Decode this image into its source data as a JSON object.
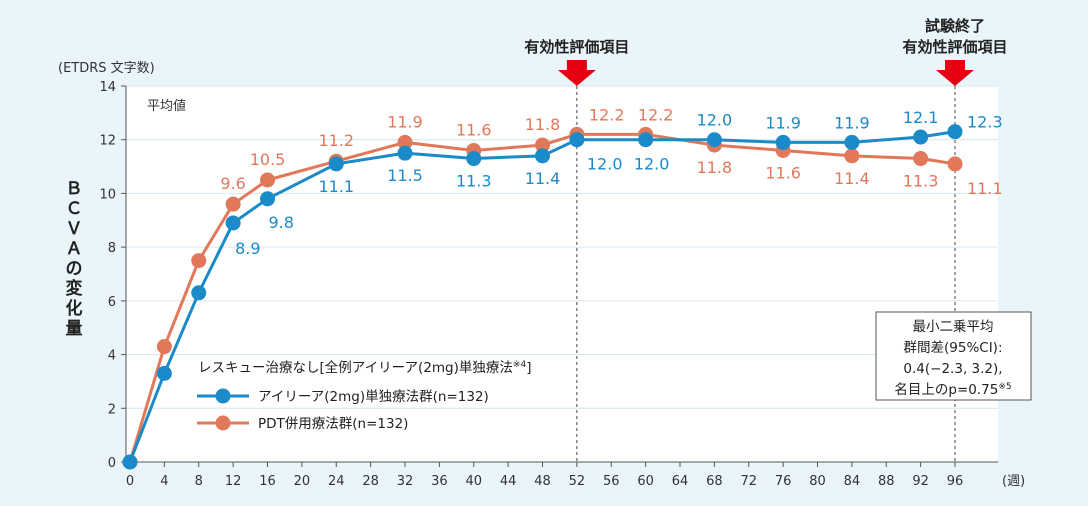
{
  "chart_data": {
    "type": "line",
    "unit_label": "(ETDRS 文字数)",
    "ylabel": "ＢＣＶＡの変化量",
    "x_unit": "(週)",
    "subtitle": "平均値",
    "ylim": [
      0,
      14
    ],
    "xlim": [
      0,
      96
    ],
    "y_ticks": [
      0,
      2,
      4,
      6,
      8,
      10,
      12,
      14
    ],
    "x_ticks": [
      0,
      4,
      8,
      12,
      16,
      20,
      24,
      28,
      32,
      36,
      40,
      44,
      48,
      52,
      56,
      60,
      64,
      68,
      72,
      76,
      80,
      84,
      88,
      92,
      96
    ],
    "x": [
      0,
      4,
      8,
      12,
      16,
      24,
      32,
      40,
      48,
      52,
      60,
      68,
      76,
      84,
      92,
      96
    ],
    "series": [
      {
        "name": "アイリーア(2mg)単独療法群(n=132)",
        "color": "#1a8ac8",
        "values": [
          0,
          3.3,
          6.3,
          8.9,
          9.8,
          11.1,
          11.5,
          11.3,
          11.4,
          12.0,
          12.0,
          12.0,
          11.9,
          11.9,
          12.1,
          12.3
        ],
        "labels": [
          "",
          "",
          "",
          "8.9",
          "9.8",
          "11.1",
          "11.5",
          "11.3",
          "11.4",
          "12.0",
          "12.0",
          "12.0",
          "11.9",
          "11.9",
          "12.1",
          "12.3"
        ]
      },
      {
        "name": "PDT併用療法群(n=132)",
        "color": "#e2785a",
        "values": [
          0,
          4.3,
          7.5,
          9.6,
          10.5,
          11.2,
          11.9,
          11.6,
          11.8,
          12.2,
          12.2,
          11.8,
          11.6,
          11.4,
          11.3,
          11.1
        ],
        "labels": [
          "",
          "",
          "",
          "9.6",
          "10.5",
          "11.2",
          "11.9",
          "11.6",
          "11.8",
          "12.2",
          "12.2",
          "11.8",
          "11.6",
          "11.4",
          "11.3",
          "11.1"
        ]
      }
    ],
    "legend_title": "レスキュー治療なし[全例アイリーア(2mg)単独療法",
    "legend_title_sup": "※4",
    "legend_title_end": "]",
    "legend_position": "lower-left",
    "annotations": [
      {
        "x": 52,
        "lines": [
          "有効性評価項目"
        ],
        "arrow_color": "#e60012"
      },
      {
        "x": 96,
        "lines": [
          "試験終了",
          "有効性評価項目"
        ],
        "arrow_color": "#e60012"
      }
    ],
    "note": {
      "lines": [
        "最小二乗平均",
        "群間差(95%CI):",
        "0.4(−2.3, 3.2),",
        "名目上のp=0.75"
      ],
      "sup": "※5"
    }
  }
}
